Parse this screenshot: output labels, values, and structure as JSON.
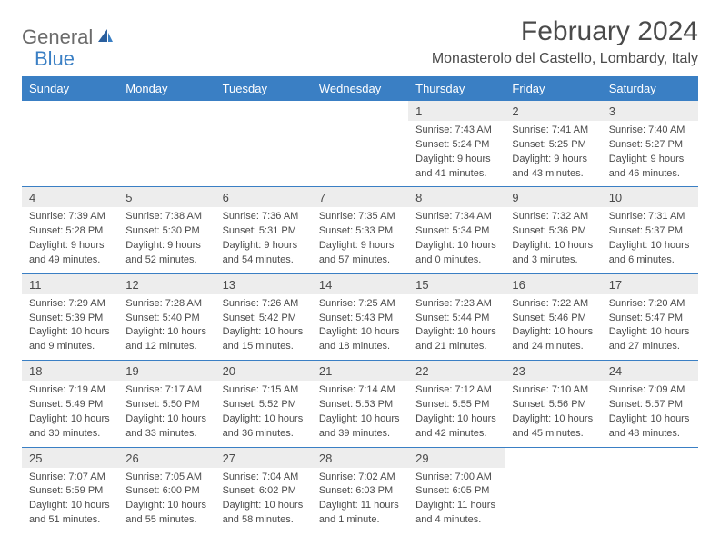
{
  "logo": {
    "text1": "General",
    "text2": "Blue"
  },
  "title": "February 2024",
  "location": "Monasterolo del Castello, Lombardy, Italy",
  "colors": {
    "header_bg": "#3a7fc4",
    "header_fg": "#ffffff",
    "daynum_bg": "#ededed",
    "text": "#4a4a4a",
    "logo_gray": "#6b6b6b",
    "logo_blue": "#3a7fc4",
    "rule": "#3a7fc4"
  },
  "weekdays": [
    "Sunday",
    "Monday",
    "Tuesday",
    "Wednesday",
    "Thursday",
    "Friday",
    "Saturday"
  ],
  "weeks": [
    [
      null,
      null,
      null,
      null,
      {
        "n": "1",
        "sr": "Sunrise: 7:43 AM",
        "ss": "Sunset: 5:24 PM",
        "d1": "Daylight: 9 hours",
        "d2": "and 41 minutes."
      },
      {
        "n": "2",
        "sr": "Sunrise: 7:41 AM",
        "ss": "Sunset: 5:25 PM",
        "d1": "Daylight: 9 hours",
        "d2": "and 43 minutes."
      },
      {
        "n": "3",
        "sr": "Sunrise: 7:40 AM",
        "ss": "Sunset: 5:27 PM",
        "d1": "Daylight: 9 hours",
        "d2": "and 46 minutes."
      }
    ],
    [
      {
        "n": "4",
        "sr": "Sunrise: 7:39 AM",
        "ss": "Sunset: 5:28 PM",
        "d1": "Daylight: 9 hours",
        "d2": "and 49 minutes."
      },
      {
        "n": "5",
        "sr": "Sunrise: 7:38 AM",
        "ss": "Sunset: 5:30 PM",
        "d1": "Daylight: 9 hours",
        "d2": "and 52 minutes."
      },
      {
        "n": "6",
        "sr": "Sunrise: 7:36 AM",
        "ss": "Sunset: 5:31 PM",
        "d1": "Daylight: 9 hours",
        "d2": "and 54 minutes."
      },
      {
        "n": "7",
        "sr": "Sunrise: 7:35 AM",
        "ss": "Sunset: 5:33 PM",
        "d1": "Daylight: 9 hours",
        "d2": "and 57 minutes."
      },
      {
        "n": "8",
        "sr": "Sunrise: 7:34 AM",
        "ss": "Sunset: 5:34 PM",
        "d1": "Daylight: 10 hours",
        "d2": "and 0 minutes."
      },
      {
        "n": "9",
        "sr": "Sunrise: 7:32 AM",
        "ss": "Sunset: 5:36 PM",
        "d1": "Daylight: 10 hours",
        "d2": "and 3 minutes."
      },
      {
        "n": "10",
        "sr": "Sunrise: 7:31 AM",
        "ss": "Sunset: 5:37 PM",
        "d1": "Daylight: 10 hours",
        "d2": "and 6 minutes."
      }
    ],
    [
      {
        "n": "11",
        "sr": "Sunrise: 7:29 AM",
        "ss": "Sunset: 5:39 PM",
        "d1": "Daylight: 10 hours",
        "d2": "and 9 minutes."
      },
      {
        "n": "12",
        "sr": "Sunrise: 7:28 AM",
        "ss": "Sunset: 5:40 PM",
        "d1": "Daylight: 10 hours",
        "d2": "and 12 minutes."
      },
      {
        "n": "13",
        "sr": "Sunrise: 7:26 AM",
        "ss": "Sunset: 5:42 PM",
        "d1": "Daylight: 10 hours",
        "d2": "and 15 minutes."
      },
      {
        "n": "14",
        "sr": "Sunrise: 7:25 AM",
        "ss": "Sunset: 5:43 PM",
        "d1": "Daylight: 10 hours",
        "d2": "and 18 minutes."
      },
      {
        "n": "15",
        "sr": "Sunrise: 7:23 AM",
        "ss": "Sunset: 5:44 PM",
        "d1": "Daylight: 10 hours",
        "d2": "and 21 minutes."
      },
      {
        "n": "16",
        "sr": "Sunrise: 7:22 AM",
        "ss": "Sunset: 5:46 PM",
        "d1": "Daylight: 10 hours",
        "d2": "and 24 minutes."
      },
      {
        "n": "17",
        "sr": "Sunrise: 7:20 AM",
        "ss": "Sunset: 5:47 PM",
        "d1": "Daylight: 10 hours",
        "d2": "and 27 minutes."
      }
    ],
    [
      {
        "n": "18",
        "sr": "Sunrise: 7:19 AM",
        "ss": "Sunset: 5:49 PM",
        "d1": "Daylight: 10 hours",
        "d2": "and 30 minutes."
      },
      {
        "n": "19",
        "sr": "Sunrise: 7:17 AM",
        "ss": "Sunset: 5:50 PM",
        "d1": "Daylight: 10 hours",
        "d2": "and 33 minutes."
      },
      {
        "n": "20",
        "sr": "Sunrise: 7:15 AM",
        "ss": "Sunset: 5:52 PM",
        "d1": "Daylight: 10 hours",
        "d2": "and 36 minutes."
      },
      {
        "n": "21",
        "sr": "Sunrise: 7:14 AM",
        "ss": "Sunset: 5:53 PM",
        "d1": "Daylight: 10 hours",
        "d2": "and 39 minutes."
      },
      {
        "n": "22",
        "sr": "Sunrise: 7:12 AM",
        "ss": "Sunset: 5:55 PM",
        "d1": "Daylight: 10 hours",
        "d2": "and 42 minutes."
      },
      {
        "n": "23",
        "sr": "Sunrise: 7:10 AM",
        "ss": "Sunset: 5:56 PM",
        "d1": "Daylight: 10 hours",
        "d2": "and 45 minutes."
      },
      {
        "n": "24",
        "sr": "Sunrise: 7:09 AM",
        "ss": "Sunset: 5:57 PM",
        "d1": "Daylight: 10 hours",
        "d2": "and 48 minutes."
      }
    ],
    [
      {
        "n": "25",
        "sr": "Sunrise: 7:07 AM",
        "ss": "Sunset: 5:59 PM",
        "d1": "Daylight: 10 hours",
        "d2": "and 51 minutes."
      },
      {
        "n": "26",
        "sr": "Sunrise: 7:05 AM",
        "ss": "Sunset: 6:00 PM",
        "d1": "Daylight: 10 hours",
        "d2": "and 55 minutes."
      },
      {
        "n": "27",
        "sr": "Sunrise: 7:04 AM",
        "ss": "Sunset: 6:02 PM",
        "d1": "Daylight: 10 hours",
        "d2": "and 58 minutes."
      },
      {
        "n": "28",
        "sr": "Sunrise: 7:02 AM",
        "ss": "Sunset: 6:03 PM",
        "d1": "Daylight: 11 hours",
        "d2": "and 1 minute."
      },
      {
        "n": "29",
        "sr": "Sunrise: 7:00 AM",
        "ss": "Sunset: 6:05 PM",
        "d1": "Daylight: 11 hours",
        "d2": "and 4 minutes."
      },
      null,
      null
    ]
  ]
}
